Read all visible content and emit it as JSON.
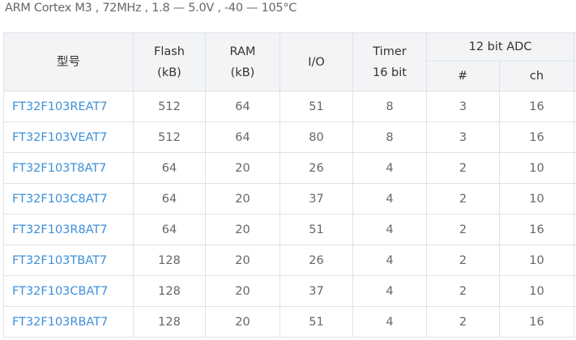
{
  "subtitle": "ARM Cortex M3 , 72MHz , 1.8 — 5.0V , -40 — 105°C",
  "headers": {
    "model": "型号",
    "flash": [
      "Flash",
      "(kB)"
    ],
    "ram": [
      "RAM",
      "(kB)"
    ],
    "io": "I/O",
    "timer": [
      "Timer",
      "16 bit"
    ],
    "adc": "12 bit ADC",
    "adc_count": "#",
    "adc_ch": "ch"
  },
  "colors": {
    "link": "#3d8fd8",
    "header_bg": "#f3f4f6",
    "border": "#dfe2e8"
  },
  "rows": [
    [
      "FT32F103REAT7",
      "512",
      "64",
      "51",
      "8",
      "3",
      "16"
    ],
    [
      "FT32F103VEAT7",
      "512",
      "64",
      "80",
      "8",
      "3",
      "16"
    ],
    [
      "FT32F103T8AT7",
      "64",
      "20",
      "26",
      "4",
      "2",
      "10"
    ],
    [
      "FT32F103C8AT7",
      "64",
      "20",
      "37",
      "4",
      "2",
      "10"
    ],
    [
      "FT32F103R8AT7",
      "64",
      "20",
      "51",
      "4",
      "2",
      "16"
    ],
    [
      "FT32F103TBAT7",
      "128",
      "20",
      "26",
      "4",
      "2",
      "10"
    ],
    [
      "FT32F103CBAT7",
      "128",
      "20",
      "37",
      "4",
      "2",
      "10"
    ],
    [
      "FT32F103RBAT7",
      "128",
      "20",
      "51",
      "4",
      "2",
      "16"
    ]
  ]
}
